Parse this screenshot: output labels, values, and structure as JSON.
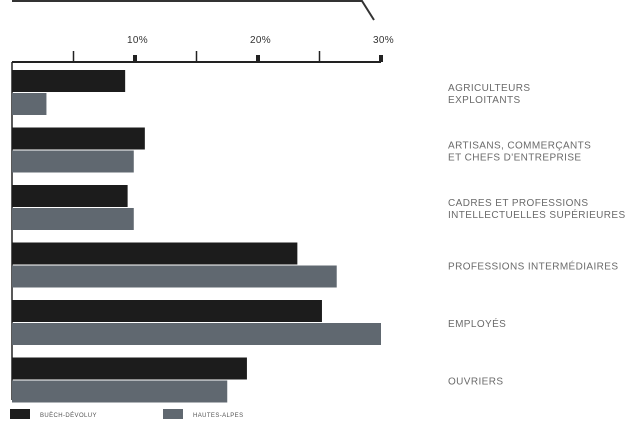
{
  "chart_data": {
    "type": "bar",
    "orientation": "horizontal",
    "xlim": [
      0,
      30
    ],
    "ticks": [
      {
        "value": 10,
        "label": "10%"
      },
      {
        "value": 20,
        "label": "20%"
      },
      {
        "value": 30,
        "label": "30%"
      }
    ],
    "categories": [
      [
        "AGRICULTEURS",
        "EXPLOITANTS"
      ],
      [
        "ARTISANS, COMMERÇANTS",
        "ET CHEFS D'ENTREPRISE"
      ],
      [
        "CADRES ET PROFESSIONS",
        "INTELLECTUELLES SUPÉRIEURES"
      ],
      [
        "PROFESSIONS INTERMÉDIAIRES"
      ],
      [
        "EMPLOYÉS"
      ],
      [
        "OUVRIERS"
      ]
    ],
    "series": [
      {
        "name": "BUËCH-DÉVOLUY",
        "color": "#1c1c1c",
        "values": [
          9.2,
          10.8,
          9.4,
          23.2,
          25.2,
          19.1
        ]
      },
      {
        "name": "HAUTES-ALPES",
        "color": "#606870",
        "values": [
          2.8,
          9.9,
          9.9,
          26.4,
          30.0,
          17.5
        ]
      }
    ],
    "legend_position": "bottom-left",
    "grid": false
  }
}
